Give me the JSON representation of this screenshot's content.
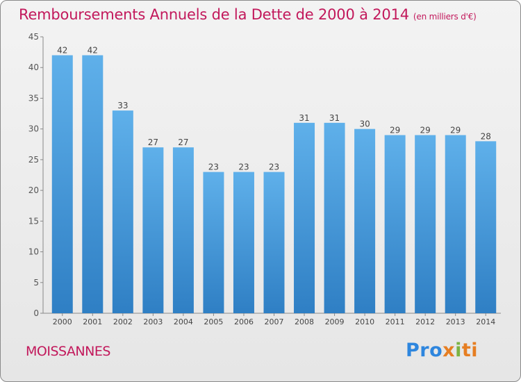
{
  "title": "Remboursements Annuels de la Dette de 2000 à 2014",
  "unit_note": "(en milliers d'€)",
  "commune": "MOISSANNES",
  "logo": {
    "parts": [
      "Pro",
      "x",
      "i",
      "ti"
    ]
  },
  "colors": {
    "bar": "#4a9fdf",
    "title": "#c2185b",
    "axis": "#555555"
  },
  "chart_data": {
    "type": "bar",
    "title": "Remboursements Annuels de la Dette de 2000 à 2014",
    "xlabel": "",
    "ylabel": "",
    "categories": [
      "2000",
      "2001",
      "2002",
      "2003",
      "2004",
      "2005",
      "2006",
      "2007",
      "2008",
      "2009",
      "2010",
      "2011",
      "2012",
      "2013",
      "2014"
    ],
    "values": [
      42,
      42,
      33,
      27,
      27,
      23,
      23,
      23,
      31,
      31,
      30,
      29,
      29,
      29,
      28
    ],
    "ylim": [
      0,
      45
    ],
    "yticks": [
      0,
      5,
      10,
      15,
      20,
      25,
      30,
      35,
      40,
      45
    ],
    "grid": false,
    "data_labels": true
  }
}
